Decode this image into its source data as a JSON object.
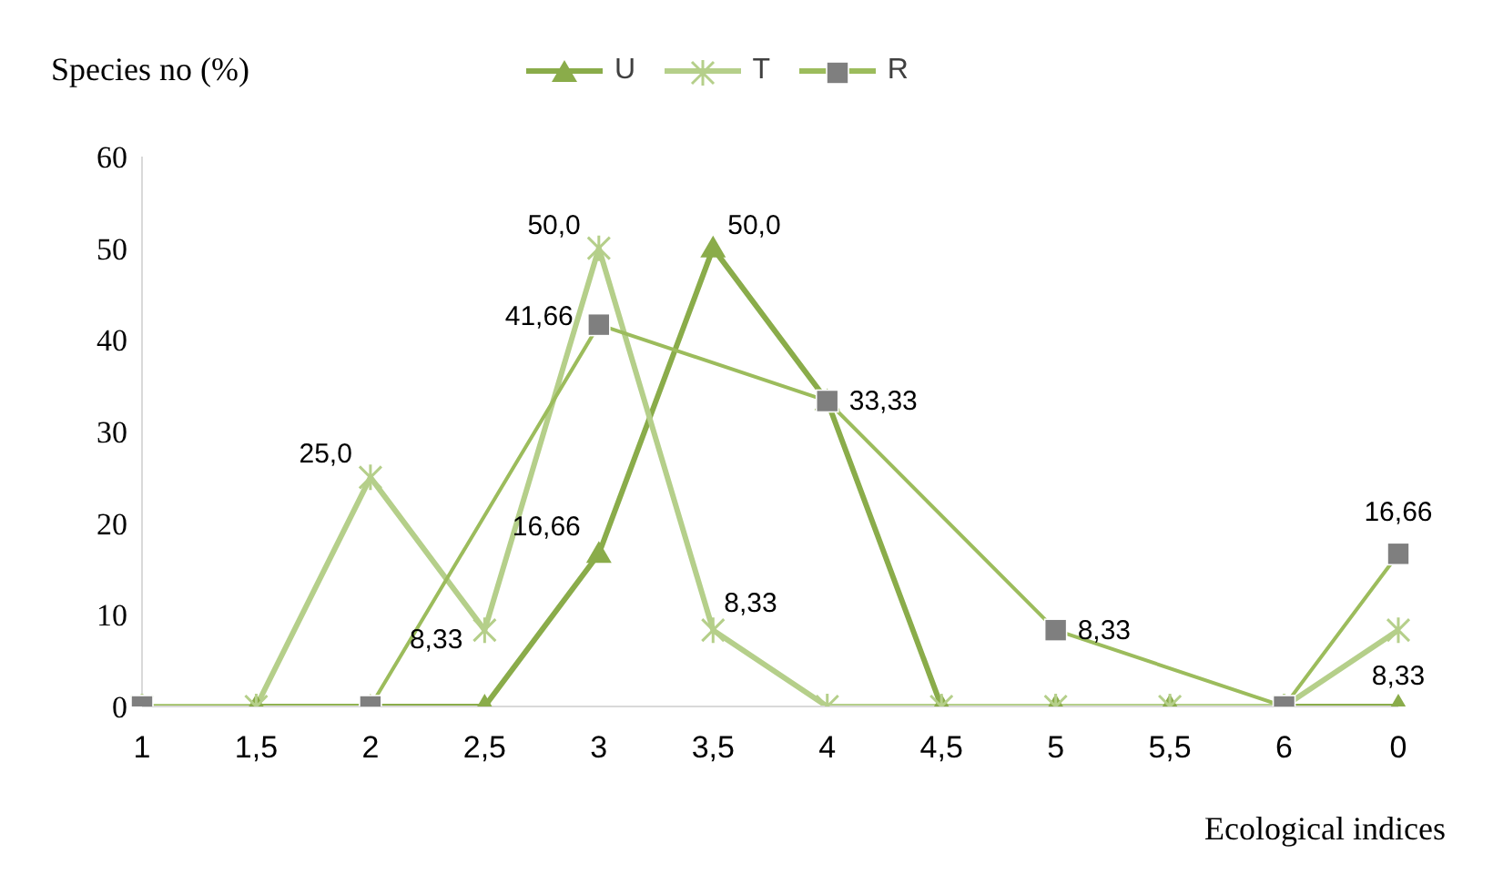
{
  "chart_data": {
    "type": "line",
    "xlabel": "Ecological indices",
    "ylabel": "Species no (%)",
    "categories": [
      "1",
      "1,5",
      "2",
      "2,5",
      "3",
      "3,5",
      "4",
      "4,5",
      "5",
      "5,5",
      "6",
      "0"
    ],
    "series": [
      {
        "name": "U",
        "color": "#8aac4a",
        "marker": "triangle",
        "values": [
          0,
          0,
          0,
          0,
          16.66,
          50,
          33.33,
          0,
          0,
          0,
          0,
          0
        ],
        "value_labels": [
          null,
          null,
          null,
          null,
          "16,66",
          "50,0",
          null,
          null,
          null,
          null,
          null,
          null
        ]
      },
      {
        "name": "T",
        "color": "#b5cf8a",
        "marker": "cross",
        "values": [
          0,
          0,
          25,
          8.33,
          50,
          8.33,
          0,
          0,
          0,
          0,
          0,
          8.33
        ],
        "value_labels": [
          null,
          null,
          "25,0",
          "8,33",
          "50,0",
          "8,33",
          null,
          null,
          null,
          null,
          null,
          "8,33"
        ]
      },
      {
        "name": "R",
        "color": "#9cbc5c",
        "marker": "square",
        "values": [
          0,
          null,
          0,
          null,
          41.66,
          null,
          33.33,
          null,
          8.33,
          null,
          0,
          16.66
        ],
        "value_labels": [
          null,
          null,
          null,
          null,
          "41,66",
          null,
          "33,33",
          null,
          "8,33",
          null,
          null,
          "16,66"
        ]
      }
    ],
    "ylim": [
      0,
      60
    ],
    "yticks": [
      0,
      10,
      20,
      30,
      40,
      50,
      60
    ],
    "grid": false,
    "legend": "top"
  }
}
